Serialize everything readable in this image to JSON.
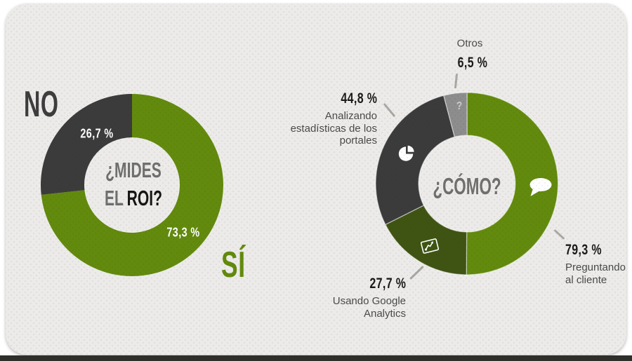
{
  "canvas": {
    "card_background": "#ecebe9",
    "page_background": "#ffffff",
    "bottom_strip_color": "#2e2e2b"
  },
  "colors": {
    "green": "#628a0d",
    "dark_gray": "#3b3b3b",
    "dark_green": "#3f5412",
    "light_gray_slice": "#8d8d8d",
    "big_no": "#3d3d3d",
    "center_text": "#6f6f6f",
    "center_emphasis": "#151515",
    "callout_number": "#1a1a1a",
    "callout_text": "#4a4a4a",
    "slice_percent_text": "#ffffff",
    "leader_line": "#a9a8a4"
  },
  "chart_data": [
    {
      "type": "pie",
      "variant": "donut",
      "question_line1": "¿MIDES",
      "question_line2_normal": "EL",
      "question_line2_emphasis": "ROI?",
      "units": "%",
      "start_angle_deg": 0,
      "direction": "clockwise",
      "slices": [
        {
          "label": "SÍ",
          "value": 73.3,
          "display": "73,3 %",
          "color": "#628a0d"
        },
        {
          "label": "NO",
          "value": 26.7,
          "display": "26,7 %",
          "color": "#3b3b3b"
        }
      ]
    },
    {
      "type": "pie",
      "variant": "donut",
      "question": "¿CÓMO?",
      "units": "%",
      "start_angle_deg": 0,
      "direction": "clockwise",
      "slices": [
        {
          "label": "Preguntando al cliente",
          "value": 79.3,
          "display": "79,3 %",
          "color": "#628a0d",
          "icon": "speech-bubble-icon",
          "label_lines": [
            "Preguntando",
            "al cliente"
          ]
        },
        {
          "label": "Usando Google Analytics",
          "value": 27.7,
          "display": "27,7 %",
          "color": "#3f5412",
          "icon": "analytics-board-icon",
          "label_lines": [
            "Usando Google",
            "Analytics"
          ]
        },
        {
          "label": "Analizando estadísticas de los portales",
          "value": 44.8,
          "display": "44,8 %",
          "color": "#3b3b3b",
          "icon": "pie-chart-icon",
          "label_lines": [
            "Analizando",
            "estadísticas de los",
            "portales"
          ]
        },
        {
          "label": "Otros",
          "value": 6.5,
          "display": "6,5 %",
          "color": "#8d8d8d",
          "icon": "question-mark-icon",
          "icon_glyph": "?",
          "label_lines": [
            "Otros"
          ]
        }
      ]
    }
  ]
}
